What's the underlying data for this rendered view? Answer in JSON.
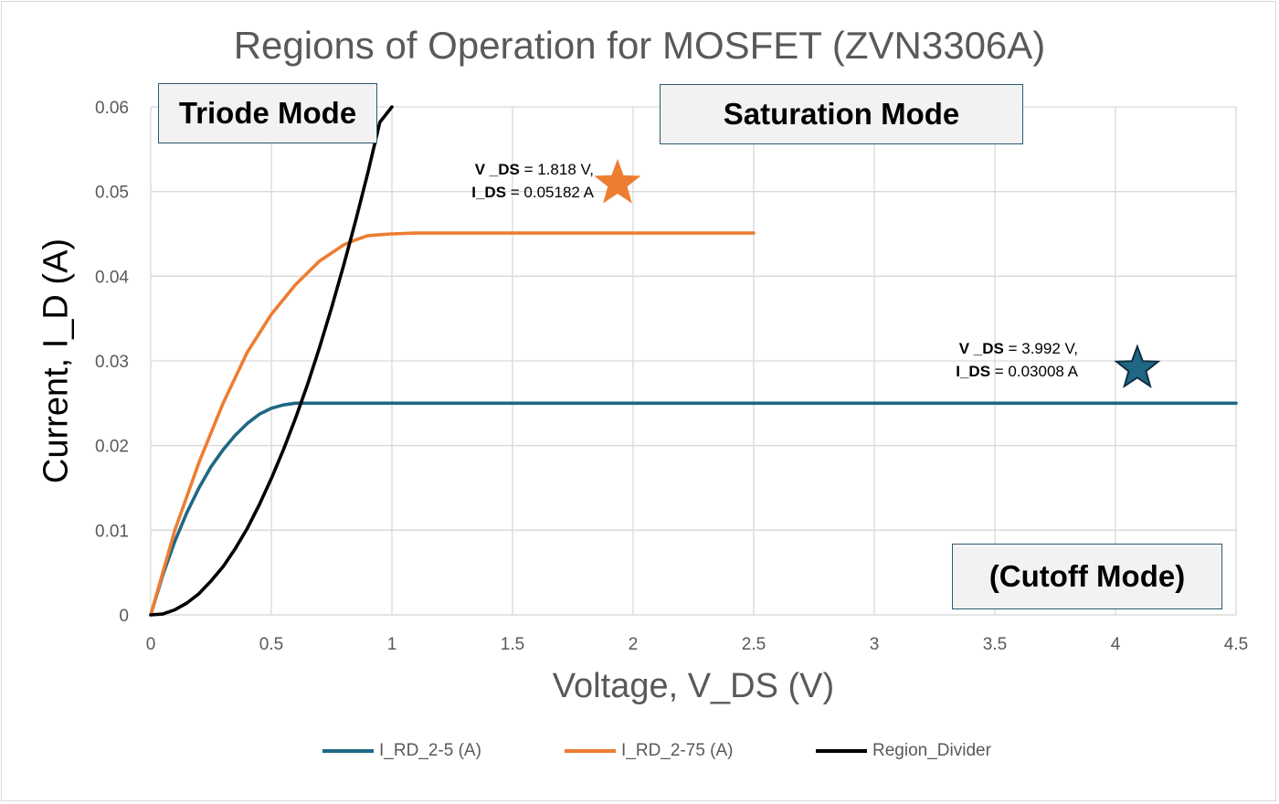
{
  "chart_data": {
    "type": "line",
    "title": "Regions of Operation for MOSFET (ZVN3306A)",
    "xlabel": "Voltage, V_DS (V)",
    "ylabel": "Current, I_D (A)",
    "xlim": [
      0,
      4.5
    ],
    "ylim": [
      0,
      0.06
    ],
    "x_ticks": [
      "0",
      "0.5",
      "1",
      "1.5",
      "2",
      "2.5",
      "3",
      "3.5",
      "4",
      "4.5"
    ],
    "y_ticks": [
      "0",
      "0.01",
      "0.02",
      "0.03",
      "0.04",
      "0.05",
      "0.06"
    ],
    "grid": true,
    "legend_position": "bottom",
    "series": [
      {
        "name": "I_RD_2-5 (A)",
        "color": "#1f6784",
        "x": [
          0,
          0.05,
          0.1,
          0.15,
          0.2,
          0.25,
          0.3,
          0.35,
          0.4,
          0.45,
          0.5,
          0.55,
          0.6,
          0.65,
          0.7,
          0.75,
          1.0,
          1.5,
          2.0,
          2.5,
          3.0,
          3.5,
          4.0,
          4.5
        ],
        "y": [
          0,
          0.0047,
          0.0087,
          0.0121,
          0.015,
          0.0175,
          0.0195,
          0.0212,
          0.0226,
          0.0237,
          0.0244,
          0.0248,
          0.025,
          0.025,
          0.025,
          0.025,
          0.025,
          0.025,
          0.025,
          0.025,
          0.025,
          0.025,
          0.025,
          0.025
        ]
      },
      {
        "name": "I_RD_2-75 (A)",
        "color": "#ed7d31",
        "x": [
          0,
          0.1,
          0.2,
          0.3,
          0.4,
          0.5,
          0.6,
          0.7,
          0.8,
          0.85,
          0.9,
          0.95,
          1.0,
          1.1,
          1.5,
          2.0,
          2.5
        ],
        "y": [
          0,
          0.01,
          0.018,
          0.025,
          0.031,
          0.0355,
          0.039,
          0.0418,
          0.0437,
          0.0443,
          0.0448,
          0.0449,
          0.045,
          0.0451,
          0.0451,
          0.0451,
          0.0451
        ]
      },
      {
        "name": "Region_Divider",
        "color": "#000000",
        "x": [
          0,
          0.05,
          0.1,
          0.15,
          0.2,
          0.25,
          0.3,
          0.35,
          0.4,
          0.45,
          0.5,
          0.55,
          0.6,
          0.65,
          0.7,
          0.75,
          0.8,
          0.85,
          0.9,
          0.95,
          1.0,
          1.05,
          1.1,
          1.13
        ],
        "y": [
          0,
          0.0001,
          0.0006,
          0.0014,
          0.0025,
          0.004,
          0.0057,
          0.0078,
          0.0102,
          0.013,
          0.0161,
          0.0195,
          0.0232,
          0.0272,
          0.0316,
          0.0363,
          0.0413,
          0.0466,
          0.0522,
          0.0582,
          0.06,
          0.06,
          0.06,
          0.06
        ]
      }
    ],
    "markers": [
      {
        "x": 1.818,
        "y": 0.05182,
        "color": "#ed7d31"
      },
      {
        "x": 3.992,
        "y": 0.03008,
        "color": "#1f6784"
      }
    ]
  },
  "annotations": {
    "orange": {
      "line1_bold": "V _DS",
      "line1_rest": " = 1.818 V,",
      "line2_bold": "I_DS",
      "line2_rest": " = 0.05182 A"
    },
    "blue": {
      "line1_bold": "V _DS",
      "line1_rest": " = 3.992 V,",
      "line2_bold": "I_DS",
      "line2_rest": " = 0.03008 A"
    }
  },
  "region_labels": {
    "triode": "Triode Mode",
    "saturation": "Saturation Mode",
    "cutoff": "(Cutoff Mode)"
  }
}
